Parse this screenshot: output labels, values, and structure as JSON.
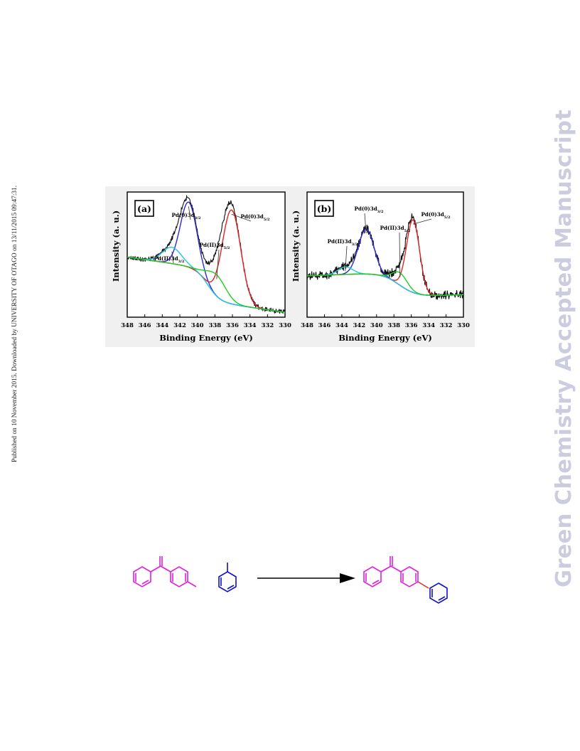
{
  "side_note": "Published on 10 November 2015. Downloaded by UNIVERSITY OF OTAGO on 13/11/2015 09:47:31.",
  "watermark": "Green Chemistry Accepted Manuscript",
  "colors": {
    "raw": "#111111",
    "fit_pd0_52": "#e02424",
    "fit_pd0_32": "#2a2ad0",
    "fit_pd2_52": "#22cc22",
    "fit_pd2_32": "#22c7dd",
    "background": "#dd22dd",
    "scheme_reactant": "#e020e0",
    "scheme_partner": "#1010c8",
    "scheme_bond": "#e03030"
  },
  "chart_data": [
    {
      "panel": "(a)",
      "type": "line",
      "xlabel": "Binding Energy (eV)",
      "ylabel": "Intensity (a. u.)",
      "xlim": [
        348,
        330
      ],
      "xticks": [
        "348",
        "346",
        "344",
        "342",
        "340",
        "338",
        "336",
        "334",
        "332",
        "330"
      ],
      "series": [
        {
          "name": "Pd(0)3d",
          "sub": "3/2",
          "center": 341.0,
          "sigma": 0.95,
          "height": 0.52,
          "role": "fit_pd0_32"
        },
        {
          "name": "Pd(0)3d",
          "sub": "5/2",
          "center": 336.1,
          "sigma": 1.05,
          "height": 0.75,
          "role": "fit_pd0_52"
        },
        {
          "name": "Pd(II)3d",
          "sub": "3/2",
          "center": 342.9,
          "sigma": 1.1,
          "height": 0.13,
          "role": "fit_pd2_32"
        },
        {
          "name": "Pd(II)3d",
          "sub": "5/2",
          "center": 337.8,
          "sigma": 1.1,
          "height": 0.17,
          "role": "fit_pd2_52"
        }
      ],
      "background": {
        "start": 0.48,
        "end": 0.04,
        "step_center": 338.8,
        "step_width": 0.7,
        "drop": 0.26
      },
      "noise": 0.012
    },
    {
      "panel": "(b)",
      "type": "line",
      "xlabel": "Binding Energy (eV)",
      "ylabel": "Intensity (a. u.)",
      "xlim": [
        348,
        330
      ],
      "xticks": [
        "348",
        "346",
        "344",
        "342",
        "340",
        "338",
        "336",
        "334",
        "332",
        "330"
      ],
      "series": [
        {
          "name": "Pd(0)3d",
          "sub": "3/2",
          "center": 341.2,
          "sigma": 0.9,
          "height": 0.36,
          "role": "fit_pd0_32"
        },
        {
          "name": "Pd(0)3d",
          "sub": "5/2",
          "center": 335.8,
          "sigma": 0.75,
          "height": 0.58,
          "role": "fit_pd0_52"
        },
        {
          "name": "Pd(II)3d",
          "sub": "3/2",
          "center": 343.6,
          "sigma": 0.85,
          "height": 0.06,
          "role": "fit_pd2_32"
        },
        {
          "name": "Pd(II)3d",
          "sub": "5/2",
          "center": 337.3,
          "sigma": 0.85,
          "height": 0.1,
          "role": "fit_pd2_52"
        }
      ],
      "background": {
        "start": 0.33,
        "end": 0.18,
        "step_center": 337.4,
        "step_width": 1.0,
        "drop": 0.2
      },
      "noise": 0.022
    }
  ]
}
